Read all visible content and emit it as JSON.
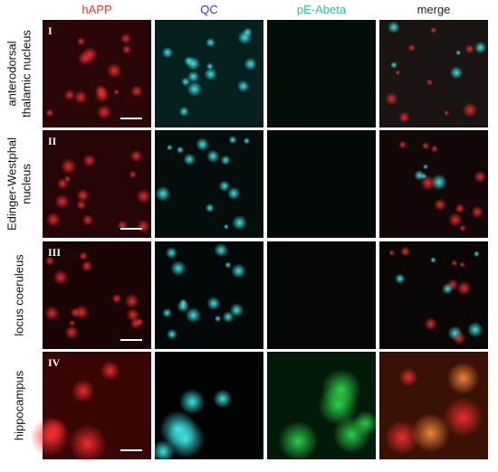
{
  "columns": [
    "hAPP",
    "QC",
    "pE-Abeta",
    "merge"
  ],
  "rows": [
    {
      "numeral": "I",
      "label": [
        "anterodorsal",
        "thalamic nucleus"
      ]
    },
    {
      "numeral": "II",
      "label": [
        "Edinger-Westphal",
        "nucleus"
      ]
    },
    {
      "numeral": "III",
      "label": [
        "locus coeruleus"
      ]
    },
    {
      "numeral": "IV",
      "label": [
        "hippocampus"
      ]
    }
  ]
}
